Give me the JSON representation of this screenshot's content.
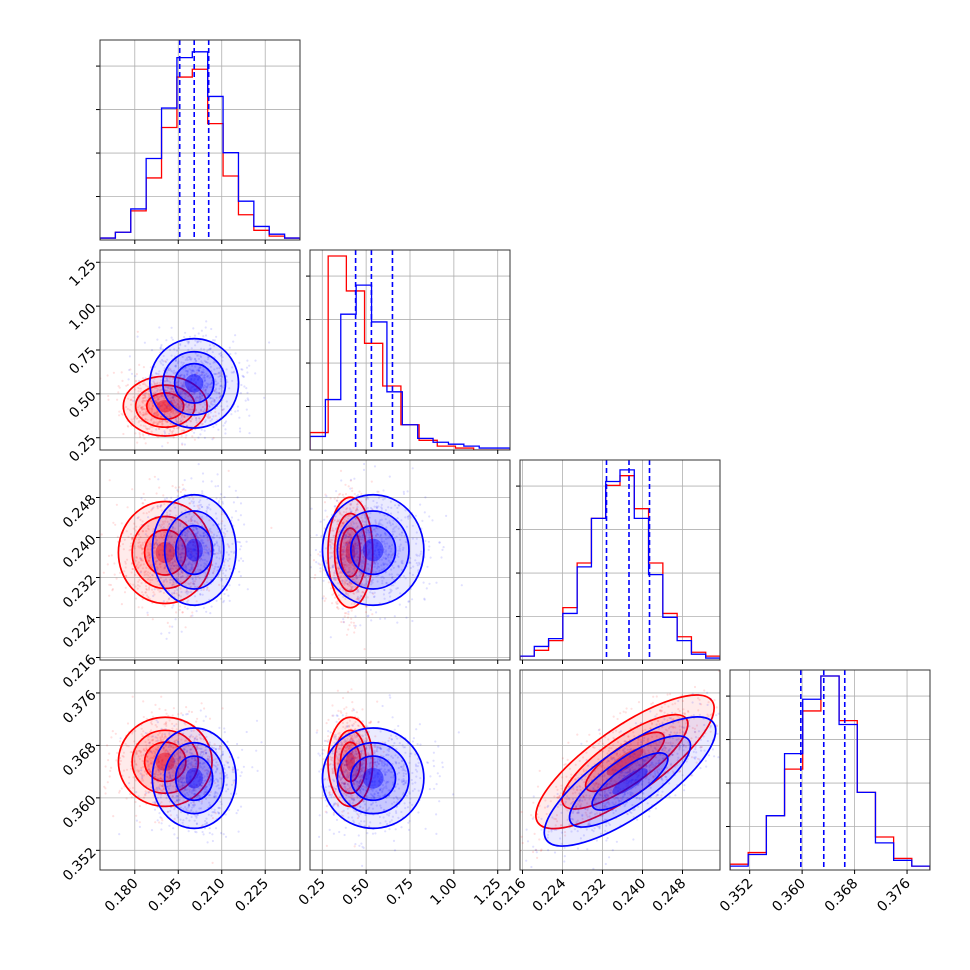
{
  "chart_data": {
    "type": "corner",
    "grid": true,
    "legend": "none",
    "colors": {
      "red_series": "#ff0000",
      "blue_series": "#0000ff",
      "grid": "#b0b0b0"
    },
    "parameters": [
      {
        "xlim": [
          0.168,
          0.237
        ],
        "xticks": [
          "0.180",
          "0.195",
          "0.210",
          "0.225"
        ],
        "quantiles_blue": [
          0.1955,
          0.2005,
          0.2055
        ]
      },
      {
        "xlim": [
          0.18,
          1.32
        ],
        "xticks": [
          "0.25",
          "0.50",
          "0.75",
          "1.00",
          "1.25"
        ],
        "yticks": [
          "0.25",
          "0.50",
          "0.75",
          "1.00",
          "1.25"
        ],
        "quantiles_blue": [
          0.44,
          0.53,
          0.65
        ]
      },
      {
        "xlim": [
          0.2155,
          0.2555
        ],
        "xticks": [
          "0.216",
          "0.224",
          "0.232",
          "0.240",
          "0.248"
        ],
        "yticks": [
          "0.216",
          "0.224",
          "0.232",
          "0.240",
          "0.248"
        ],
        "quantiles_blue": [
          0.2328,
          0.2373,
          0.2414
        ]
      },
      {
        "xlim": [
          0.349,
          0.3795
        ],
        "xticks": [
          "0.352",
          "0.360",
          "0.368",
          "0.376"
        ],
        "yticks": [
          "0.352",
          "0.360",
          "0.368",
          "0.376"
        ],
        "quantiles_blue": [
          0.3598,
          0.3633,
          0.3665
        ]
      }
    ],
    "series": [
      {
        "color": "red",
        "histograms": [
          [
            0.01,
            0.04,
            0.15,
            0.32,
            0.58,
            0.84,
            0.88,
            0.6,
            0.33,
            0.13,
            0.05,
            0.02,
            0.01
          ],
          [
            0.09,
            1.0,
            0.82,
            0.55,
            0.33,
            0.13,
            0.05,
            0.02,
            0.01,
            0,
            0
          ],
          [
            0.02,
            0.05,
            0.1,
            0.27,
            0.5,
            0.73,
            0.9,
            0.95,
            0.78,
            0.5,
            0.24,
            0.12,
            0.04,
            0.02
          ],
          [
            0.03,
            0.09,
            0.28,
            0.52,
            0.82,
            1.0,
            0.77,
            0.4,
            0.17,
            0.06,
            0.02
          ]
        ],
        "centers": [
          {
            "x": 0.1905,
            "y": 0.43,
            "rx": 0.0085,
            "ry": 0.1,
            "rot": 0
          },
          {
            "x": 0.1905,
            "y": 0.237,
            "rx": 0.0095,
            "ry": 0.006,
            "rot": 0
          },
          {
            "x": 0.1905,
            "y": 0.3655,
            "rx": 0.0095,
            "ry": 0.004,
            "rot": 0
          },
          {
            "x": 0.41,
            "y": 0.237,
            "rx": 0.075,
            "ry": 0.0065,
            "rot": 0
          },
          {
            "x": 0.41,
            "y": 0.3655,
            "rx": 0.075,
            "ry": 0.004,
            "rot": 0
          },
          {
            "x": 0.2365,
            "y": 0.3655,
            "rx": 0.0125,
            "ry": 0.003,
            "rot": -35
          }
        ]
      },
      {
        "color": "blue",
        "histograms": [
          [
            0.01,
            0.04,
            0.16,
            0.42,
            0.68,
            0.94,
            0.97,
            0.74,
            0.45,
            0.2,
            0.07,
            0.03,
            0.01
          ],
          [
            0.07,
            0.26,
            0.7,
            0.85,
            0.66,
            0.3,
            0.13,
            0.06,
            0.04,
            0.03,
            0.02,
            0.01,
            0.01
          ],
          [
            0.02,
            0.07,
            0.11,
            0.24,
            0.48,
            0.73,
            0.92,
            0.98,
            0.73,
            0.44,
            0.22,
            0.1,
            0.03,
            0.01
          ],
          [
            0.02,
            0.08,
            0.28,
            0.6,
            0.88,
            1.0,
            0.75,
            0.4,
            0.14,
            0.05,
            0.02
          ]
        ],
        "centers": [
          {
            "x": 0.2005,
            "y": 0.56,
            "rx": 0.009,
            "ry": 0.15,
            "rot": 0
          },
          {
            "x": 0.2005,
            "y": 0.2375,
            "rx": 0.0085,
            "ry": 0.0065,
            "rot": 0
          },
          {
            "x": 0.2005,
            "y": 0.363,
            "rx": 0.0085,
            "ry": 0.0045,
            "rot": 0
          },
          {
            "x": 0.54,
            "y": 0.2375,
            "rx": 0.17,
            "ry": 0.0065,
            "rot": 0
          },
          {
            "x": 0.54,
            "y": 0.363,
            "rx": 0.17,
            "ry": 0.0045,
            "rot": 0
          },
          {
            "x": 0.2375,
            "y": 0.3625,
            "rx": 0.012,
            "ry": 0.003,
            "rot": -35
          }
        ]
      }
    ]
  }
}
